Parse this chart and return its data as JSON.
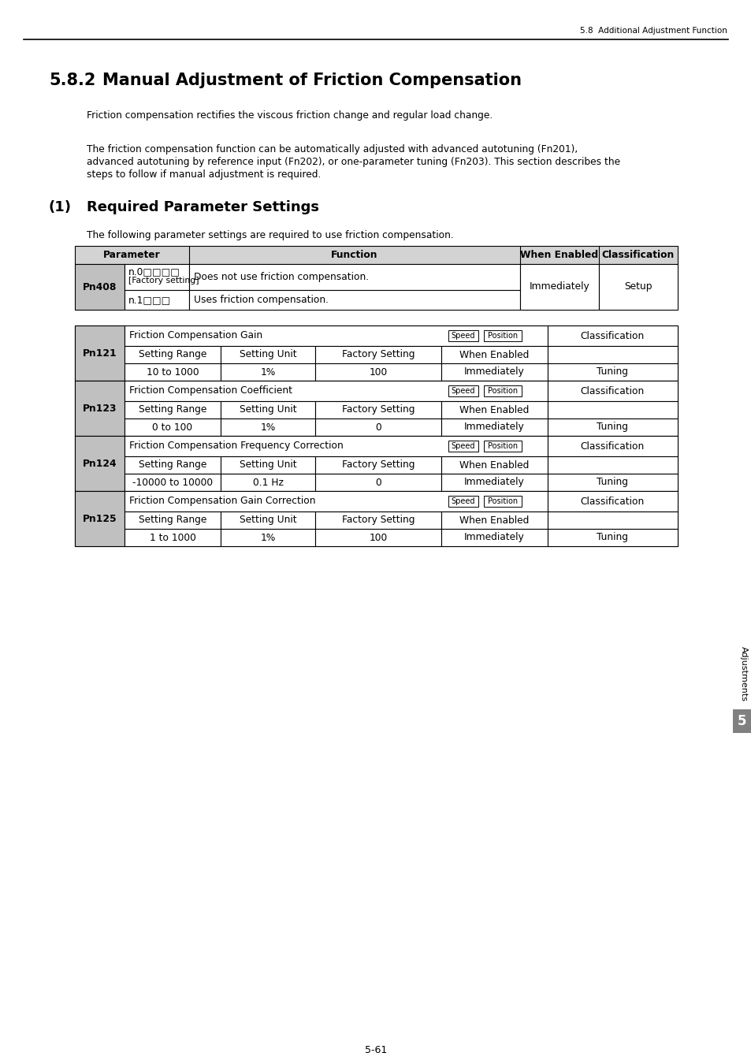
{
  "page_header": "5.8  Additional Adjustment Function",
  "section_num": "5.8.2",
  "section_title": "Manual Adjustment of Friction Compensation",
  "para1": "Friction compensation rectifies the viscous friction change and regular load change.",
  "para2_lines": [
    "The friction compensation function can be automatically adjusted with advanced autotuning (Fn201),",
    "advanced autotuning by reference input (Fn202), or one-parameter tuning (Fn203). This section describes the",
    "steps to follow if manual adjustment is required."
  ],
  "subsection_num": "(1)",
  "subsection_title": "Required Parameter Settings",
  "para3": "The following parameter settings are required to use friction compensation.",
  "table1_pn": "Pn408",
  "table1_row1_param": "n.0□□□□",
  "table1_row1_note": "[Factory setting]",
  "table1_row1_func": "Does not use friction compensation.",
  "table1_row2_param": "n.1□□□",
  "table1_row2_func": "Uses friction compensation.",
  "table1_when": "Immediately",
  "table1_class": "Setup",
  "pn_rows": [
    {
      "pn": "Pn121",
      "name": "Friction Compensation Gain",
      "setting_range": "10 to 1000",
      "setting_unit": "1%",
      "factory_setting": "100",
      "when_enabled": "Immediately",
      "classification": "Tuning"
    },
    {
      "pn": "Pn123",
      "name": "Friction Compensation Coefficient",
      "setting_range": "0 to 100",
      "setting_unit": "1%",
      "factory_setting": "0",
      "when_enabled": "Immediately",
      "classification": "Tuning"
    },
    {
      "pn": "Pn124",
      "name": "Friction Compensation Frequency Correction",
      "setting_range": "-10000 to 10000",
      "setting_unit": "0.1 Hz",
      "factory_setting": "0",
      "when_enabled": "Immediately",
      "classification": "Tuning"
    },
    {
      "pn": "Pn125",
      "name": "Friction Compensation Gain Correction",
      "setting_range": "1 to 1000",
      "setting_unit": "1%",
      "factory_setting": "100",
      "when_enabled": "Immediately",
      "classification": "Tuning"
    }
  ],
  "sidebar_text": "Adjustments",
  "sidebar_num": "5",
  "page_num": "5-61",
  "bg_color": "#ffffff",
  "table_border_color": "#000000",
  "header_bg": "#d3d3d3",
  "pn_cell_bg": "#c0c0c0"
}
